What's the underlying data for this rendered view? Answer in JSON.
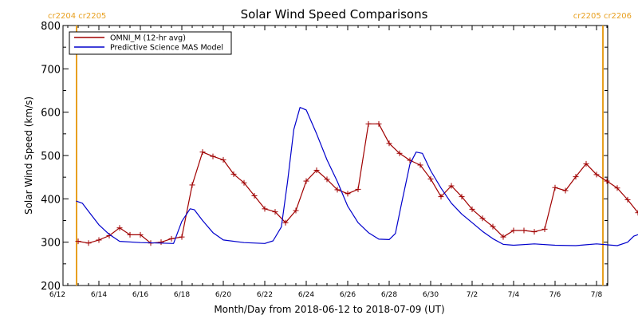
{
  "chart_data": {
    "type": "line",
    "title": "Solar Wind Speed Comparisons",
    "xlabel": "Month/Day from 2018-06-12 to 2018-07-09 (UT)",
    "ylabel": "Solar Wind Speed (km/s)",
    "ylim": [
      200,
      800
    ],
    "yticks": [
      200,
      300,
      400,
      500,
      600,
      700,
      800
    ],
    "xlim_days": [
      0,
      27
    ],
    "xticks": [
      {
        "day": 0,
        "label": "6/12"
      },
      {
        "day": 2,
        "label": "6/14"
      },
      {
        "day": 4,
        "label": "6/16"
      },
      {
        "day": 6,
        "label": "6/18"
      },
      {
        "day": 8,
        "label": "6/20"
      },
      {
        "day": 10,
        "label": "6/22"
      },
      {
        "day": 12,
        "label": "6/24"
      },
      {
        "day": 14,
        "label": "6/26"
      },
      {
        "day": 16,
        "label": "6/28"
      },
      {
        "day": 18,
        "label": "6/30"
      },
      {
        "day": 20,
        "label": "7/2"
      },
      {
        "day": 22,
        "label": "7/4"
      },
      {
        "day": 24,
        "label": "7/6"
      },
      {
        "day": 26,
        "label": "7/8"
      }
    ],
    "carrington": {
      "left_day": 1.0,
      "right_day": 26.9,
      "top_left": "cr2204  cr2205",
      "top_right": "cr2205  cr2206",
      "color": "#e8a020"
    },
    "legend_position": "top-left",
    "series": [
      {
        "name": "OMNI_M (12-hr avg)",
        "color": "#a00000",
        "marker": "plus",
        "points": [
          [
            1.0,
            302
          ],
          [
            1.5,
            298
          ],
          [
            2.0,
            305
          ],
          [
            2.5,
            315
          ],
          [
            3.0,
            333
          ],
          [
            3.5,
            317
          ],
          [
            4.0,
            317
          ],
          [
            4.5,
            298
          ],
          [
            5.0,
            300
          ],
          [
            5.5,
            308
          ],
          [
            6.0,
            312
          ],
          [
            6.5,
            432
          ],
          [
            7.0,
            508
          ],
          [
            7.5,
            498
          ],
          [
            8.0,
            490
          ],
          [
            8.5,
            457
          ],
          [
            9.0,
            437
          ],
          [
            9.5,
            407
          ],
          [
            10.0,
            377
          ],
          [
            10.5,
            370
          ],
          [
            11.0,
            345
          ],
          [
            11.5,
            373
          ],
          [
            12.0,
            441
          ],
          [
            12.5,
            466
          ],
          [
            13.0,
            445
          ],
          [
            13.5,
            421
          ],
          [
            14.0,
            412
          ],
          [
            14.5,
            422
          ],
          [
            15.0,
            573
          ],
          [
            15.5,
            573
          ],
          [
            16.0,
            528
          ],
          [
            16.5,
            505
          ],
          [
            17.0,
            489
          ],
          [
            17.5,
            478
          ],
          [
            18.0,
            446
          ],
          [
            18.5,
            405
          ],
          [
            19.0,
            430
          ],
          [
            19.5,
            405
          ],
          [
            20.0,
            376
          ],
          [
            20.5,
            355
          ],
          [
            21.0,
            336
          ],
          [
            21.5,
            312
          ],
          [
            22.0,
            327
          ],
          [
            22.5,
            327
          ],
          [
            23.0,
            324
          ],
          [
            23.5,
            330
          ],
          [
            24.0,
            426
          ],
          [
            24.5,
            419
          ],
          [
            25.0,
            451
          ],
          [
            25.5,
            481
          ],
          [
            26.0,
            456
          ],
          [
            26.5,
            441
          ],
          [
            27.0,
            425
          ],
          [
            27.5,
            398
          ],
          [
            28.0,
            368
          ]
        ]
      },
      {
        "name": "Predictive Science MAS Model",
        "color": "#0000cc",
        "marker": "none",
        "points": [
          [
            0.9,
            395
          ],
          [
            1.2,
            390
          ],
          [
            1.6,
            365
          ],
          [
            2.0,
            340
          ],
          [
            2.5,
            318
          ],
          [
            3.0,
            302
          ],
          [
            4.0,
            299
          ],
          [
            5.0,
            298
          ],
          [
            5.6,
            297
          ],
          [
            6.0,
            348
          ],
          [
            6.4,
            377
          ],
          [
            6.6,
            375
          ],
          [
            7.0,
            350
          ],
          [
            7.5,
            322
          ],
          [
            8.0,
            305
          ],
          [
            9.0,
            299
          ],
          [
            10.0,
            297
          ],
          [
            10.4,
            303
          ],
          [
            10.8,
            335
          ],
          [
            11.1,
            440
          ],
          [
            11.4,
            560
          ],
          [
            11.7,
            611
          ],
          [
            12.0,
            605
          ],
          [
            12.5,
            550
          ],
          [
            13.0,
            490
          ],
          [
            13.5,
            440
          ],
          [
            14.0,
            383
          ],
          [
            14.5,
            345
          ],
          [
            15.0,
            322
          ],
          [
            15.5,
            307
          ],
          [
            16.0,
            306
          ],
          [
            16.3,
            320
          ],
          [
            16.6,
            390
          ],
          [
            17.0,
            480
          ],
          [
            17.3,
            508
          ],
          [
            17.6,
            505
          ],
          [
            18.0,
            465
          ],
          [
            18.5,
            425
          ],
          [
            19.0,
            390
          ],
          [
            19.5,
            365
          ],
          [
            20.0,
            345
          ],
          [
            20.5,
            325
          ],
          [
            21.0,
            308
          ],
          [
            21.5,
            295
          ],
          [
            22.0,
            293
          ],
          [
            23.0,
            296
          ],
          [
            24.0,
            293
          ],
          [
            25.0,
            292
          ],
          [
            25.5,
            294
          ],
          [
            26.0,
            296
          ],
          [
            26.5,
            294
          ],
          [
            27.0,
            292
          ],
          [
            27.5,
            300
          ],
          [
            27.8,
            314
          ],
          [
            28.1,
            319
          ]
        ]
      }
    ]
  }
}
